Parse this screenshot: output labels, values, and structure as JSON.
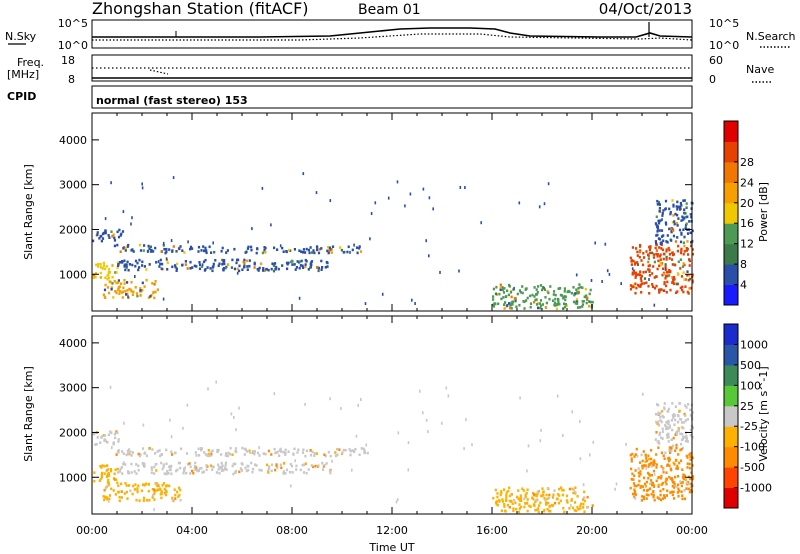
{
  "header": {
    "station": "Zhongshan Station (fitACF)",
    "beam": "Beam 01",
    "date": "04/Oct/2013"
  },
  "strip_nsky": {
    "left_label": "N.Sky",
    "right_label": "N.Search",
    "left_ticks": [
      "10^5",
      "10^0"
    ],
    "right_ticks": [
      "10^5",
      "10^0"
    ]
  },
  "strip_freq": {
    "left_label_1": "Freq.",
    "left_label_2": "[MHz]",
    "right_label": "Nave",
    "left_ticks": [
      "18",
      "8"
    ],
    "right_ticks": [
      "60",
      "0"
    ]
  },
  "strip_cpid": {
    "label": "CPID",
    "text": "normal (fast stereo) 153"
  },
  "xaxis": {
    "title": "Time UT",
    "ticks": [
      "00:00",
      "04:00",
      "08:00",
      "12:00",
      "16:00",
      "20:00",
      "00:00"
    ]
  },
  "colors": {
    "power": [
      "#1a1aff",
      "#2a4fa8",
      "#3c7a4a",
      "#4c9a55",
      "#f0c800",
      "#f5a000",
      "#f07800",
      "#e84000",
      "#e00000"
    ],
    "velocity": [
      "#e00000",
      "#ff4400",
      "#ff8c00",
      "#ffb000",
      "#c8c8c8",
      "#58c838",
      "#3c8a58",
      "#2a56a8",
      "#1a2ccc"
    ]
  },
  "chart_data": [
    {
      "type": "heatmap",
      "title": "",
      "xlabel": "",
      "ylabel": "Slant Range [km]",
      "xlim": [
        0,
        24
      ],
      "ylim": [
        180,
        4600
      ],
      "yticks": [
        "1000",
        "2000",
        "3000",
        "4000"
      ],
      "colorbar": {
        "label": "Power [dB]",
        "ticks": [
          "4",
          "8",
          "12",
          "16",
          "20",
          "24",
          "28"
        ]
      },
      "regions": [
        {
          "x": [
            0.0,
            1.2
          ],
          "y": [
            1750,
            2050
          ],
          "value": "8"
        },
        {
          "x": [
            0.8,
            3.0
          ],
          "y": [
            1520,
            1680
          ],
          "value": "8"
        },
        {
          "x": [
            2.8,
            11.0
          ],
          "y": [
            1500,
            1650
          ],
          "value": "8"
        },
        {
          "x": [
            0.0,
            1.0
          ],
          "y": [
            900,
            1300
          ],
          "value": "16"
        },
        {
          "x": [
            0.4,
            2.6
          ],
          "y": [
            500,
            900
          ],
          "value": "20"
        },
        {
          "x": [
            1.0,
            9.5
          ],
          "y": [
            1100,
            1350
          ],
          "value": "8"
        },
        {
          "x": [
            16.0,
            20.0
          ],
          "y": [
            250,
            800
          ],
          "value": "12"
        },
        {
          "x": [
            21.5,
            24.0
          ],
          "y": [
            600,
            1700
          ],
          "value": "24"
        },
        {
          "x": [
            22.5,
            24.0
          ],
          "y": [
            1700,
            2700
          ],
          "value": "8"
        }
      ]
    },
    {
      "type": "heatmap",
      "title": "",
      "xlabel": "Time UT",
      "ylabel": "Slant Range [km]",
      "xlim": [
        0,
        24
      ],
      "ylim": [
        180,
        4600
      ],
      "yticks": [
        "1000",
        "2000",
        "3000",
        "4000"
      ],
      "colorbar": {
        "label": "Velocity [m s^-1]",
        "ticks": [
          "1000",
          "500",
          "100",
          "25",
          "-25",
          "-100",
          "-500",
          "-1000"
        ]
      },
      "regions": [
        {
          "x": [
            0.0,
            1.2
          ],
          "y": [
            1750,
            2050
          ],
          "value": "-25 to 25"
        },
        {
          "x": [
            0.8,
            11.0
          ],
          "y": [
            1500,
            1680
          ],
          "value": "-25 to 25"
        },
        {
          "x": [
            1.0,
            9.5
          ],
          "y": [
            1100,
            1350
          ],
          "value": "-25 to 25"
        },
        {
          "x": [
            0.0,
            1.0
          ],
          "y": [
            900,
            1300
          ],
          "value": "-100"
        },
        {
          "x": [
            0.4,
            3.5
          ],
          "y": [
            500,
            900
          ],
          "value": "-100"
        },
        {
          "x": [
            16.0,
            20.0
          ],
          "y": [
            250,
            800
          ],
          "value": "-25 to -100"
        },
        {
          "x": [
            21.5,
            24.0
          ],
          "y": [
            500,
            1700
          ],
          "value": "-100 to 100"
        },
        {
          "x": [
            22.5,
            24.0
          ],
          "y": [
            1700,
            2700
          ],
          "value": "-25 to 25"
        }
      ]
    }
  ]
}
